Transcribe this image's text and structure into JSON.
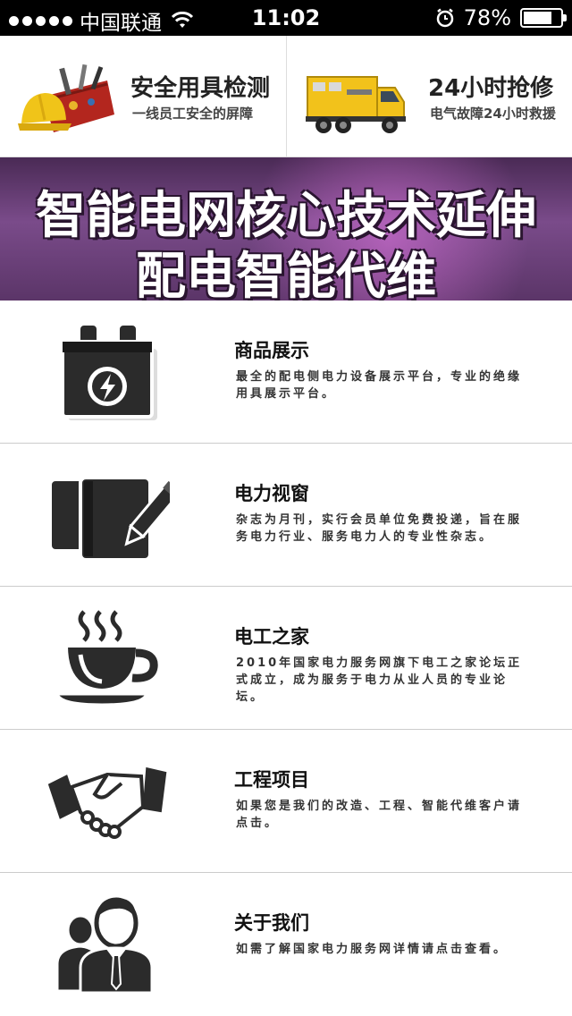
{
  "status_bar": {
    "carrier": "中国联通",
    "time": "11:02",
    "battery_text": "78%",
    "battery_level": 0.78
  },
  "top_cards": [
    {
      "title": "安全用具检测",
      "subtitle": "一线员工安全的屏障",
      "icon": "tool-bag-helmet-icon"
    },
    {
      "title": "24小时抢修",
      "subtitle": "电气故障24小时救援",
      "icon": "repair-truck-icon"
    }
  ],
  "banner": {
    "line1": "智能电网核心技术延伸",
    "line2": "配电智能代维"
  },
  "items": [
    {
      "title": "商品展示",
      "desc": "最全的配电侧电力设备展示平台，专业的绝缘用具展示平台。",
      "icon": "battery-icon"
    },
    {
      "title": "电力视窗",
      "desc": "杂志为月刊，实行会员单位免费投递，旨在服务电力行业、服务电力人的专业性杂志。",
      "icon": "book-pencil-icon"
    },
    {
      "title": "电工之家",
      "desc": "2010年国家电力服务网旗下电工之家论坛正式成立，成为服务于电力从业人员的专业论坛。",
      "icon": "coffee-cup-icon"
    },
    {
      "title": "工程项目",
      "desc": "如果您是我们的改造、工程、智能代维客户请点击。",
      "icon": "handshake-icon"
    },
    {
      "title": "关于我们",
      "desc": "如需了解国家电力服务网详情请点击查看。",
      "icon": "people-icon"
    }
  ],
  "colors": {
    "status_bg": "#000000",
    "banner_purple": "#7a4b8a",
    "icon_dark": "#2b2b2b",
    "truck_yellow": "#f2c21b"
  }
}
